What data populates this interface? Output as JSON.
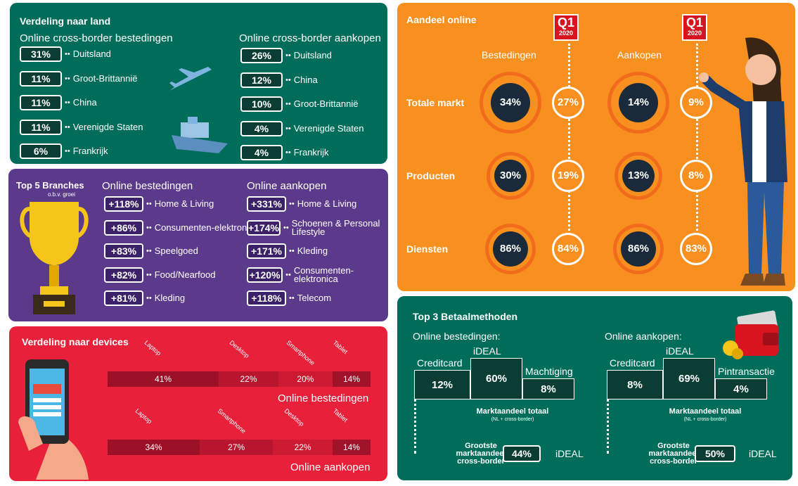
{
  "land": {
    "title": "Verdeling naar land",
    "left_header": "Online cross-border bestedingen",
    "right_header": "Online cross-border aankopen",
    "left": [
      {
        "pct": "31%",
        "label": "Duitsland"
      },
      {
        "pct": "11%",
        "label": "Groot-Brittannië"
      },
      {
        "pct": "11%",
        "label": "China"
      },
      {
        "pct": "11%",
        "label": "Verenigde Staten"
      },
      {
        "pct": "6%",
        "label": "Frankrijk"
      }
    ],
    "right": [
      {
        "pct": "26%",
        "label": "Duitsland"
      },
      {
        "pct": "12%",
        "label": "China"
      },
      {
        "pct": "10%",
        "label": "Groot-Brittannië"
      },
      {
        "pct": "4%",
        "label": "Verenigde Staten"
      },
      {
        "pct": "4%",
        "label": "Frankrijk"
      }
    ]
  },
  "branches": {
    "title": "Top 5 Branches",
    "subtitle": "o.b.v. groei",
    "left_header": "Online bestedingen",
    "right_header": "Online aankopen",
    "left": [
      {
        "pct": "+118%",
        "label": "Home & Living"
      },
      {
        "pct": "+86%",
        "label": "Consumenten-elektronica"
      },
      {
        "pct": "+83%",
        "label": "Speelgoed"
      },
      {
        "pct": "+82%",
        "label": "Food/Nearfood"
      },
      {
        "pct": "+81%",
        "label": "Kleding"
      }
    ],
    "right": [
      {
        "pct": "+331%",
        "label": "Home & Living"
      },
      {
        "pct": "+174%",
        "label": "Schoenen & Personal Lifestyle"
      },
      {
        "pct": "+171%",
        "label": "Kleding"
      },
      {
        "pct": "+120%",
        "label": "Consumenten-elektronica"
      },
      {
        "pct": "+118%",
        "label": "Telecom"
      }
    ]
  },
  "devices": {
    "title": "Verdeling naar devices",
    "bestedingen_label": "Online bestedingen",
    "aankopen_label": "Online aankopen",
    "bestedingen": [
      {
        "name": "Laptop",
        "value": "41%",
        "fraction": 0.41,
        "color": "#9c1027"
      },
      {
        "name": "Desktop",
        "value": "22%",
        "fraction": 0.22,
        "color": "#b8152e"
      },
      {
        "name": "Smartphone",
        "value": "20%",
        "fraction": 0.2,
        "color": "#cc1a33"
      },
      {
        "name": "Tablet",
        "value": "14%",
        "fraction": 0.14,
        "color": "#a0112a"
      }
    ],
    "aankopen": [
      {
        "name": "Laptop",
        "value": "34%",
        "fraction": 0.34,
        "color": "#9c1027"
      },
      {
        "name": "Smartphone",
        "value": "27%",
        "fraction": 0.27,
        "color": "#b8152e"
      },
      {
        "name": "Desktop",
        "value": "22%",
        "fraction": 0.22,
        "color": "#cc1a33"
      },
      {
        "name": "Tablet",
        "value": "14%",
        "fraction": 0.14,
        "color": "#a0112a"
      }
    ]
  },
  "online": {
    "title": "Aandeel online",
    "q1_top": "Q1",
    "q1_year": "2020",
    "col_bestedingen": "Bestedingen",
    "col_aankopen": "Aankopen",
    "rows": [
      {
        "label": "Totale markt",
        "best": "34%",
        "best_q1": "27%",
        "aank": "14%",
        "aank_q1": "9%"
      },
      {
        "label": "Producten",
        "best": "30%",
        "best_q1": "19%",
        "aank": "13%",
        "aank_q1": "8%"
      },
      {
        "label": "Diensten",
        "best": "86%",
        "best_q1": "84%",
        "aank": "86%",
        "aank_q1": "83%"
      }
    ]
  },
  "pay": {
    "title": "Top 3 Betaalmethoden",
    "left_header": "Online bestedingen:",
    "right_header": "Online aankopen:",
    "left": [
      {
        "name": "Creditcard",
        "value": "12%"
      },
      {
        "name": "iDEAL",
        "value": "60%"
      },
      {
        "name": "Machtiging",
        "value": "8%"
      }
    ],
    "right": [
      {
        "name": "Creditcard",
        "value": "8%"
      },
      {
        "name": "iDEAL",
        "value": "69%"
      },
      {
        "name": "Pintransactie",
        "value": "4%"
      }
    ],
    "market_total": "Marktaandeel totaal",
    "market_note": "(NL + cross-border)",
    "largest": "Grootste marktaandeel cross-border",
    "left_largest_value": "44%",
    "right_largest_value": "50%",
    "largest_method": "iDEAL"
  },
  "colors": {
    "green": "#006d5b",
    "purple": "#5b3a8c",
    "red": "#e8203a",
    "orange": "#f7901e"
  }
}
